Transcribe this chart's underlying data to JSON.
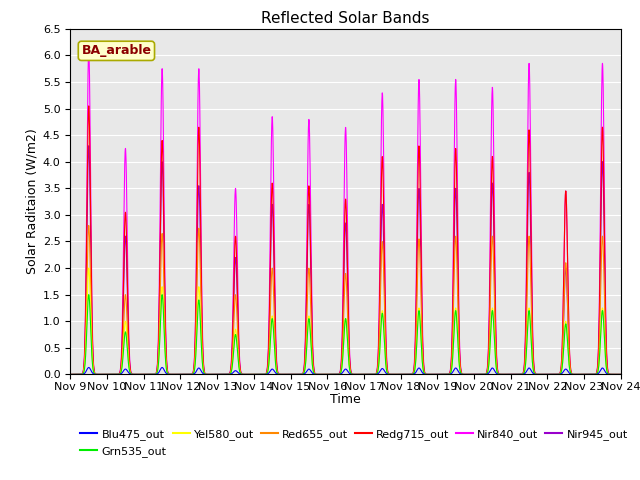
{
  "title": "Reflected Solar Bands",
  "xlabel": "Time",
  "ylabel": "Solar Raditaion (W/m2)",
  "annotation": "BA_arable",
  "xlim_start": 9,
  "xlim_end": 24,
  "ylim": [
    0,
    6.5
  ],
  "yticks": [
    0.0,
    0.5,
    1.0,
    1.5,
    2.0,
    2.5,
    3.0,
    3.5,
    4.0,
    4.5,
    5.0,
    5.5,
    6.0,
    6.5
  ],
  "xtick_labels": [
    "Nov 9",
    "Nov 10",
    "Nov 11",
    "Nov 12",
    "Nov 13",
    "Nov 14",
    "Nov 15",
    "Nov 16",
    "Nov 17",
    "Nov 18",
    "Nov 19",
    "Nov 20",
    "Nov 21",
    "Nov 22",
    "Nov 23",
    "Nov 24"
  ],
  "colors": {
    "Blu475_out": "#0000ff",
    "Grn535_out": "#00ee00",
    "Yel580_out": "#ffff00",
    "Red655_out": "#ff8800",
    "Redg715_out": "#ff0000",
    "Nir840_out": "#ff00ff",
    "Nir945_out": "#9900cc"
  },
  "nir840_peaks": [
    6.1,
    4.25,
    5.75,
    5.75,
    3.5,
    4.85,
    4.8,
    4.65,
    5.3,
    5.55,
    5.55,
    5.4,
    5.85,
    3.45,
    5.85
  ],
  "nir945_peaks": [
    4.3,
    2.6,
    4.0,
    3.55,
    2.2,
    3.2,
    3.2,
    2.85,
    3.2,
    3.5,
    3.5,
    3.6,
    3.8,
    2.0,
    4.0
  ],
  "redg715_peaks": [
    5.05,
    3.05,
    4.4,
    4.65,
    2.6,
    3.6,
    3.55,
    3.3,
    4.1,
    4.3,
    4.25,
    4.1,
    4.6,
    3.45,
    4.65
  ],
  "red655_peaks": [
    2.8,
    1.5,
    2.65,
    2.75,
    1.5,
    2.0,
    2.0,
    1.9,
    2.5,
    2.55,
    2.6,
    2.6,
    2.6,
    2.1,
    2.6
  ],
  "yel580_peaks": [
    2.0,
    1.0,
    1.65,
    1.65,
    0.85,
    1.1,
    1.1,
    1.05,
    1.2,
    1.25,
    1.25,
    1.25,
    1.25,
    1.0,
    1.25
  ],
  "grn535_peaks": [
    1.5,
    0.8,
    1.5,
    1.4,
    0.75,
    1.05,
    1.05,
    1.05,
    1.15,
    1.2,
    1.2,
    1.2,
    1.2,
    0.95,
    1.2
  ],
  "blu475_peaks": [
    0.13,
    0.1,
    0.13,
    0.12,
    0.07,
    0.1,
    0.1,
    0.1,
    0.11,
    0.12,
    0.12,
    0.12,
    0.12,
    0.1,
    0.12
  ],
  "background_color": "#e8e8e8",
  "title_fontsize": 11,
  "axis_label_fontsize": 9,
  "tick_fontsize": 8,
  "linewidth": 0.8
}
